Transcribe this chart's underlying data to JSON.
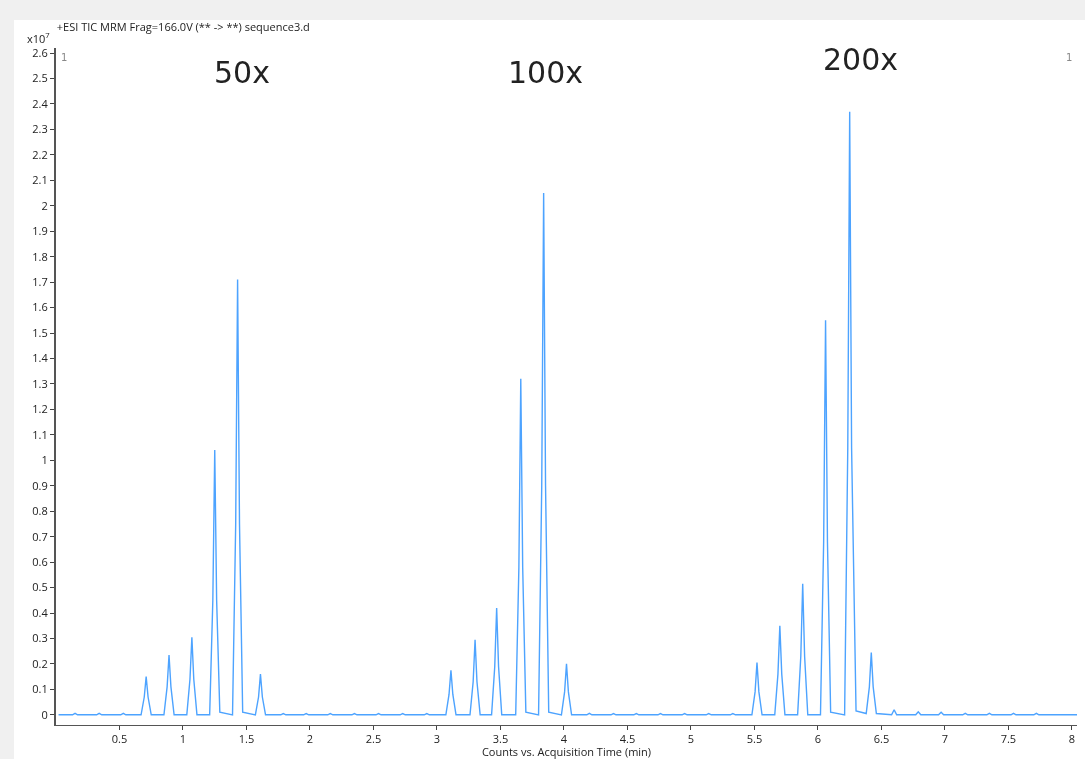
{
  "chart_data": {
    "type": "line",
    "title": "+ESI TIC MRM Frag=166.0V (** -> **) sequence3.d",
    "xlabel": "Counts vs. Acquisition Time (min)",
    "ylabel": "x10$^{7}$",
    "annotations": [
      "50x",
      "100x",
      "200x",
      "1",
      "1"
    ],
    "x": [
      0.02,
      0.13,
      0.15,
      0.17,
      0.32,
      0.34,
      0.36,
      0.51,
      0.53,
      0.55,
      0.67,
      0.695,
      0.71,
      0.725,
      0.75,
      0.85,
      0.875,
      0.89,
      0.905,
      0.93,
      1.03,
      1.055,
      1.07,
      1.085,
      1.11,
      1.21,
      1.235,
      1.25,
      1.265,
      1.29,
      1.39,
      1.415,
      1.43,
      1.445,
      1.47,
      1.57,
      1.595,
      1.61,
      1.625,
      1.65,
      1.77,
      1.79,
      1.81,
      1.95,
      1.97,
      1.99,
      2.14,
      2.16,
      2.18,
      2.33,
      2.35,
      2.37,
      2.52,
      2.54,
      2.56,
      2.71,
      2.73,
      2.75,
      2.9,
      2.92,
      2.94,
      3.07,
      3.095,
      3.11,
      3.125,
      3.15,
      3.26,
      3.285,
      3.3,
      3.315,
      3.34,
      3.43,
      3.455,
      3.47,
      3.485,
      3.51,
      3.62,
      3.645,
      3.66,
      3.675,
      3.7,
      3.8,
      3.825,
      3.84,
      3.855,
      3.88,
      3.98,
      4.005,
      4.02,
      4.035,
      4.06,
      4.18,
      4.2,
      4.22,
      4.37,
      4.39,
      4.41,
      4.55,
      4.57,
      4.59,
      4.74,
      4.76,
      4.78,
      4.93,
      4.95,
      4.97,
      5.12,
      5.14,
      5.16,
      5.31,
      5.33,
      5.35,
      5.48,
      5.505,
      5.52,
      5.535,
      5.56,
      5.66,
      5.685,
      5.7,
      5.715,
      5.74,
      5.84,
      5.865,
      5.88,
      5.895,
      5.92,
      6.02,
      6.045,
      6.06,
      6.075,
      6.1,
      6.21,
      6.235,
      6.25,
      6.265,
      6.3,
      6.38,
      6.405,
      6.42,
      6.435,
      6.46,
      6.58,
      6.6,
      6.62,
      6.77,
      6.79,
      6.81,
      6.95,
      6.97,
      6.99,
      7.14,
      7.16,
      7.18,
      7.33,
      7.35,
      7.37,
      7.52,
      7.54,
      7.56,
      7.7,
      7.72,
      7.74,
      8.04
    ],
    "series": [
      {
        "color": "#4da3ff",
        "values": [
          0,
          0,
          0.006,
          0,
          0,
          0.006,
          0,
          0,
          0.006,
          0,
          0,
          0.07,
          0.15,
          0.07,
          0,
          0,
          0.11,
          0.235,
          0.11,
          0,
          0,
          0.14,
          0.305,
          0.14,
          0,
          0,
          0.45,
          1.04,
          0.45,
          0.01,
          0,
          0.75,
          1.71,
          0.75,
          0.01,
          0,
          0.07,
          0.16,
          0.07,
          0,
          0,
          0.005,
          0,
          0,
          0.005,
          0,
          0,
          0.005,
          0,
          0,
          0.005,
          0,
          0,
          0.005,
          0,
          0,
          0.005,
          0,
          0,
          0.005,
          0,
          0,
          0.08,
          0.175,
          0.08,
          0,
          0,
          0.13,
          0.295,
          0.13,
          0,
          0,
          0.19,
          0.42,
          0.19,
          0,
          0,
          0.58,
          1.32,
          0.58,
          0.01,
          0,
          0.9,
          2.05,
          0.9,
          0.01,
          0,
          0.09,
          0.2,
          0.09,
          0,
          0,
          0.006,
          0,
          0,
          0.005,
          0,
          0,
          0.005,
          0,
          0,
          0.005,
          0,
          0,
          0.005,
          0,
          0,
          0.005,
          0,
          0,
          0.005,
          0,
          0,
          0.09,
          0.205,
          0.09,
          0,
          0,
          0.16,
          0.35,
          0.16,
          0,
          0,
          0.23,
          0.515,
          0.23,
          0,
          0,
          0.68,
          1.55,
          0.68,
          0.01,
          0,
          1.05,
          2.37,
          1.05,
          0.015,
          0.005,
          0.11,
          0.245,
          0.11,
          0.005,
          0,
          0.02,
          0,
          0,
          0.012,
          0,
          0,
          0.01,
          0,
          0,
          0.006,
          0,
          0,
          0.006,
          0,
          0,
          0.006,
          0,
          0,
          0.006,
          0,
          0
        ]
      }
    ],
    "xlim": [
      0,
      8.04
    ],
    "ylim": [
      -0.04,
      2.62
    ],
    "xticks": [
      0.5,
      1,
      1.5,
      2,
      2.5,
      3,
      3.5,
      4,
      4.5,
      5,
      5.5,
      6,
      6.5,
      7,
      7.5,
      8
    ],
    "yticks": [
      0,
      0.1,
      0.2,
      0.3,
      0.4,
      0.5,
      0.6,
      0.7,
      0.8,
      0.9,
      1,
      1.1,
      1.2,
      1.3,
      1.4,
      1.5,
      1.6,
      1.7,
      1.8,
      1.9,
      2,
      2.1,
      2.2,
      2.3,
      2.4,
      2.5,
      2.6
    ],
    "grid": false,
    "marker": "none",
    "line_style": "solid"
  }
}
